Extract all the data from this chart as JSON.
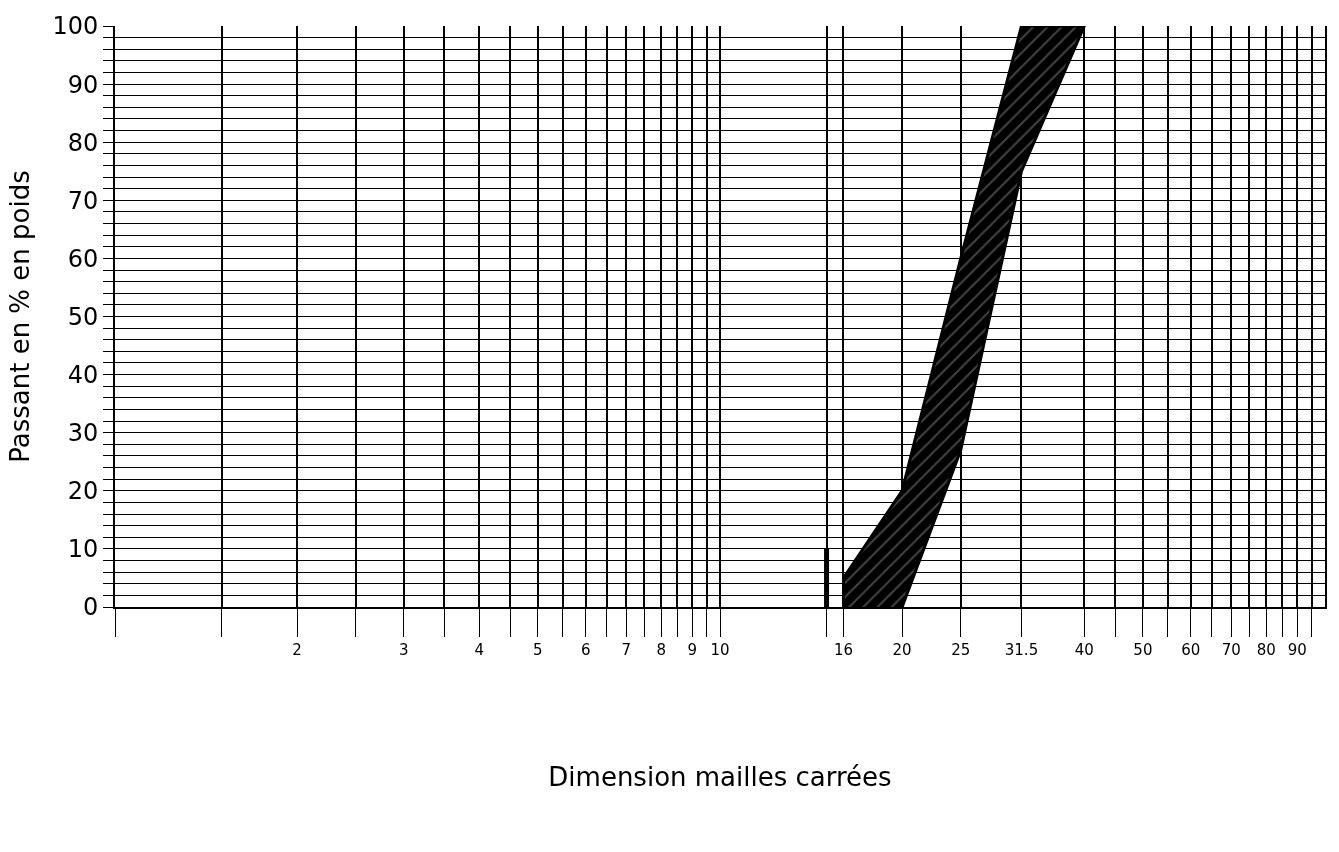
{
  "chart_data": {
    "type": "line",
    "xlabel": "Dimension mailles carrées",
    "ylabel": "Passant en % en poids",
    "log": "x",
    "xlim": [
      1,
      100
    ],
    "xticks": [
      {
        "value": 1,
        "label": null
      },
      {
        "value": 1.5,
        "label": null
      },
      2,
      {
        "value": 2.5,
        "label": null
      },
      3,
      {
        "value": 3.5,
        "label": null
      },
      4,
      {
        "value": 4.5,
        "label": null
      },
      5,
      {
        "value": 5.5,
        "label": null
      },
      6,
      {
        "value": 6.5,
        "label": null
      },
      7,
      {
        "value": 7.5,
        "label": null
      },
      8,
      {
        "value": 8.5,
        "label": null
      },
      9,
      {
        "value": 9.5,
        "label": null
      },
      10,
      {
        "value": 15,
        "label": null
      },
      16,
      20,
      25,
      31.5,
      40,
      {
        "value": 45,
        "label": null
      },
      50,
      {
        "value": 55,
        "label": null
      },
      60,
      {
        "value": 65,
        "label": null
      },
      70,
      {
        "value": 75,
        "label": null
      },
      80,
      {
        "value": 85,
        "label": null
      },
      90,
      {
        "value": 95,
        "label": null
      }
    ],
    "ylim": [
      0,
      100
    ],
    "yticks": [
      0,
      {
        "value": 2,
        "label": null
      },
      {
        "value": 4,
        "label": null
      },
      {
        "value": 6,
        "label": null
      },
      {
        "value": 8,
        "label": null
      },
      10,
      {
        "value": 12,
        "label": null
      },
      {
        "value": 14,
        "label": null
      },
      {
        "value": 16,
        "label": null
      },
      {
        "value": 18,
        "label": null
      },
      20,
      {
        "value": 22,
        "label": null
      },
      {
        "value": 24,
        "label": null
      },
      {
        "value": 26,
        "label": null
      },
      {
        "value": 28,
        "label": null
      },
      30,
      {
        "value": 32,
        "label": null
      },
      {
        "value": 34,
        "label": null
      },
      {
        "value": 36,
        "label": null
      },
      {
        "value": 38,
        "label": null
      },
      40,
      {
        "value": 42,
        "label": null
      },
      {
        "value": 44,
        "label": null
      },
      {
        "value": 46,
        "label": null
      },
      {
        "value": 48,
        "label": null
      },
      50,
      {
        "value": 52,
        "label": null
      },
      {
        "value": 54,
        "label": null
      },
      {
        "value": 56,
        "label": null
      },
      {
        "value": 58,
        "label": null
      },
      60,
      {
        "value": 62,
        "label": null
      },
      {
        "value": 64,
        "label": null
      },
      {
        "value": 66,
        "label": null
      },
      {
        "value": 68,
        "label": null
      },
      70,
      {
        "value": 72,
        "label": null
      },
      {
        "value": 74,
        "label": null
      },
      {
        "value": 76,
        "label": null
      },
      {
        "value": 78,
        "label": null
      },
      80,
      {
        "value": 82,
        "label": null
      },
      {
        "value": 84,
        "label": null
      },
      {
        "value": 86,
        "label": null
      },
      {
        "value": 88,
        "label": null
      },
      90,
      {
        "value": 92,
        "label": null
      },
      {
        "value": 94,
        "label": null
      },
      {
        "value": 96,
        "label": null
      },
      {
        "value": 98,
        "label": null
      },
      100
    ],
    "grid": true,
    "series": [
      {
        "type": "area",
        "color": "#000000",
        "x": [
          16,
          16,
          20,
          25,
          31.5,
          40,
          31.5,
          25,
          20
        ],
        "values": [
          0,
          5,
          20,
          60,
          100,
          100,
          75,
          27,
          0
        ]
      },
      {
        "color": "#000000",
        "x": [
          15,
          15
        ],
        "values": [
          0,
          10
        ]
      }
    ]
  }
}
